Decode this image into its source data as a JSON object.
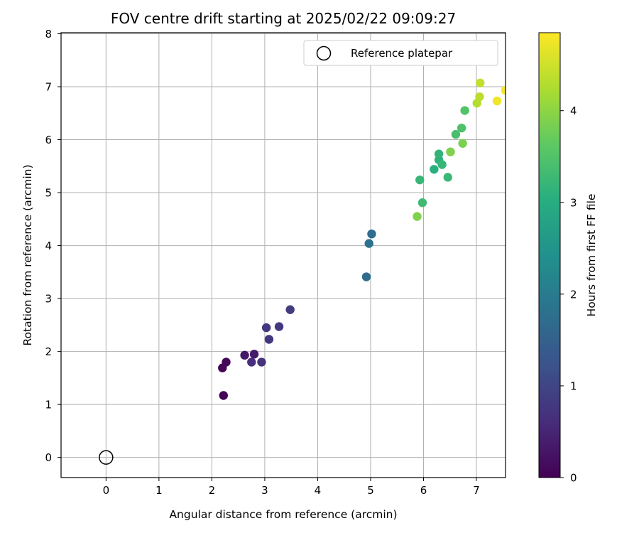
{
  "chart_data": {
    "type": "scatter",
    "title": "FOV centre drift starting at 2025/02/22 09:09:27",
    "xlabel": "Angular distance from reference (arcmin)",
    "ylabel": "Rotation from reference (arcmin)",
    "xlim": [
      -0.85,
      7.55
    ],
    "ylim": [
      -0.38,
      8.02
    ],
    "xticks": [
      "0",
      "1",
      "2",
      "3",
      "4",
      "5",
      "6",
      "7"
    ],
    "yticks": [
      "0",
      "1",
      "2",
      "3",
      "4",
      "5",
      "6",
      "7",
      "8"
    ],
    "grid": true,
    "legend": {
      "position": "top-right",
      "entries": [
        "Reference platepar"
      ]
    },
    "reference": {
      "x": 0,
      "y": 0
    },
    "colorbar": {
      "label": "Hours from first FF file",
      "colormap": "viridis",
      "range": [
        0,
        4.85
      ],
      "ticks": [
        "0",
        "1",
        "2",
        "3",
        "4"
      ]
    },
    "points": [
      {
        "x": 2.22,
        "y": 1.17,
        "t": 0.05
      },
      {
        "x": 2.2,
        "y": 1.69,
        "t": 0.05
      },
      {
        "x": 2.27,
        "y": 1.8,
        "t": 0.1
      },
      {
        "x": 2.62,
        "y": 1.93,
        "t": 0.3
      },
      {
        "x": 2.8,
        "y": 1.95,
        "t": 0.35
      },
      {
        "x": 2.75,
        "y": 1.8,
        "t": 0.6
      },
      {
        "x": 2.94,
        "y": 1.8,
        "t": 0.7
      },
      {
        "x": 3.08,
        "y": 2.23,
        "t": 0.75
      },
      {
        "x": 3.03,
        "y": 2.45,
        "t": 0.8
      },
      {
        "x": 3.27,
        "y": 2.47,
        "t": 0.8
      },
      {
        "x": 3.48,
        "y": 2.79,
        "t": 0.85
      },
      {
        "x": 4.92,
        "y": 3.41,
        "t": 1.7
      },
      {
        "x": 4.97,
        "y": 4.04,
        "t": 1.8
      },
      {
        "x": 5.02,
        "y": 4.22,
        "t": 1.75
      },
      {
        "x": 5.88,
        "y": 4.55,
        "t": 3.9
      },
      {
        "x": 5.98,
        "y": 4.81,
        "t": 3.3
      },
      {
        "x": 5.93,
        "y": 5.24,
        "t": 3.2
      },
      {
        "x": 6.2,
        "y": 5.44,
        "t": 3.05
      },
      {
        "x": 6.29,
        "y": 5.62,
        "t": 3.1
      },
      {
        "x": 6.29,
        "y": 5.73,
        "t": 3.15
      },
      {
        "x": 6.35,
        "y": 5.53,
        "t": 3.2
      },
      {
        "x": 6.46,
        "y": 5.29,
        "t": 3.25
      },
      {
        "x": 6.51,
        "y": 5.77,
        "t": 3.9
      },
      {
        "x": 6.61,
        "y": 6.1,
        "t": 3.4
      },
      {
        "x": 6.72,
        "y": 6.22,
        "t": 3.45
      },
      {
        "x": 6.74,
        "y": 5.93,
        "t": 3.85
      },
      {
        "x": 6.78,
        "y": 6.55,
        "t": 3.5
      },
      {
        "x": 7.01,
        "y": 6.69,
        "t": 4.3
      },
      {
        "x": 7.06,
        "y": 6.81,
        "t": 4.35
      },
      {
        "x": 7.07,
        "y": 7.07,
        "t": 4.4
      },
      {
        "x": 7.39,
        "y": 6.73,
        "t": 4.75
      },
      {
        "x": 7.55,
        "y": 6.93,
        "t": 4.8
      }
    ]
  }
}
